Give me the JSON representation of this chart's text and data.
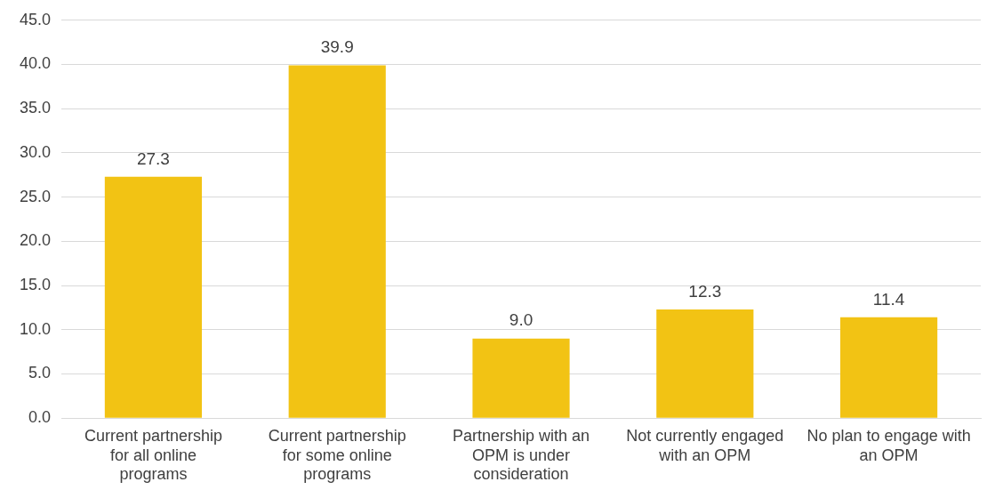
{
  "chart_data": {
    "type": "bar",
    "categories": [
      "Current partnership for all online programs",
      "Current partnership for some online programs",
      "Partnership with an OPM is under consideration",
      "Not currently engaged with an OPM",
      "No plan to engage with an OPM"
    ],
    "values": [
      27.3,
      39.9,
      9.0,
      12.3,
      11.4
    ],
    "value_labels": [
      "27.3",
      "39.9",
      "9.0",
      "12.3",
      "11.4"
    ],
    "color": "#f2c314",
    "ylim": [
      0,
      45
    ],
    "yticks": [
      {
        "value": 0,
        "label": "0.0"
      },
      {
        "value": 5,
        "label": "5.0"
      },
      {
        "value": 10,
        "label": "10.0"
      },
      {
        "value": 15,
        "label": "15.0"
      },
      {
        "value": 20,
        "label": "20.0"
      },
      {
        "value": 25,
        "label": "25.0"
      },
      {
        "value": 30,
        "label": "30.0"
      },
      {
        "value": 35,
        "label": "35.0"
      },
      {
        "value": 40,
        "label": "40.0"
      },
      {
        "value": 45,
        "label": "45.0"
      }
    ],
    "grid": "y",
    "legend": false
  }
}
